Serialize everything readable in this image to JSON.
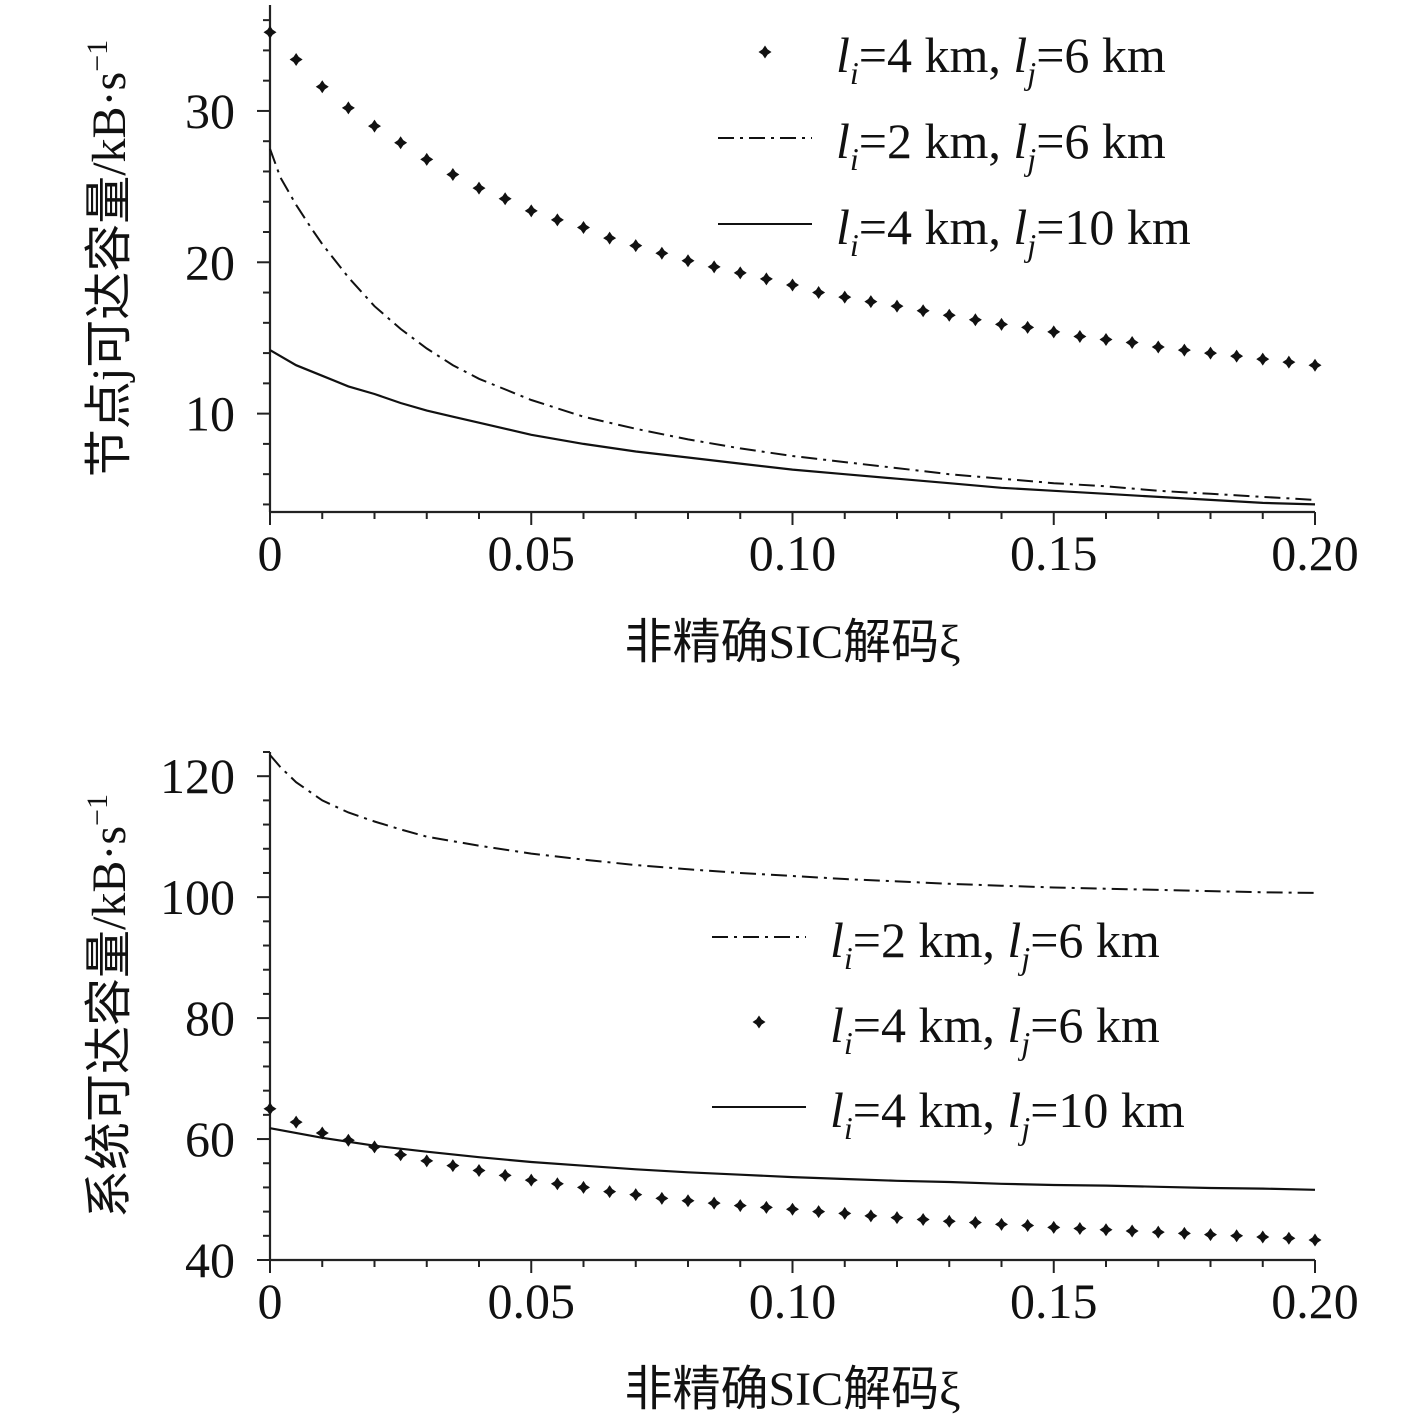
{
  "chart_data": [
    {
      "type": "line",
      "xlabel": "非精确SIC解码ξ",
      "ylabel": "节点j可达容量/kB·s",
      "ylabel_sup": "−1",
      "xlim": [
        0,
        0.2
      ],
      "ylim": [
        3.5,
        37
      ],
      "xticks": [
        0,
        0.05,
        0.1,
        0.15,
        0.2
      ],
      "xtick_labels": [
        "0",
        "0.05",
        "0.10",
        "0.15",
        "0.20"
      ],
      "yticks": [
        10,
        20,
        30
      ],
      "ytick_labels": [
        "10",
        "20",
        "30"
      ],
      "legend_position": "top-right",
      "series": [
        {
          "name": "li=4 km, lj=6 km",
          "label_parts": [
            "l",
            "i",
            "=4 km, ",
            "l",
            "j",
            "=6 km"
          ],
          "style": "markers",
          "x": [
            0,
            0.005,
            0.01,
            0.015,
            0.02,
            0.025,
            0.03,
            0.035,
            0.04,
            0.045,
            0.05,
            0.055,
            0.06,
            0.065,
            0.07,
            0.075,
            0.08,
            0.085,
            0.09,
            0.095,
            0.1,
            0.105,
            0.11,
            0.115,
            0.12,
            0.125,
            0.13,
            0.135,
            0.14,
            0.145,
            0.15,
            0.155,
            0.16,
            0.165,
            0.17,
            0.175,
            0.18,
            0.185,
            0.19,
            0.195,
            0.2
          ],
          "y": [
            35.2,
            33.4,
            31.6,
            30.2,
            29.0,
            27.9,
            26.8,
            25.8,
            24.9,
            24.2,
            23.4,
            22.8,
            22.3,
            21.6,
            21.1,
            20.6,
            20.1,
            19.7,
            19.3,
            18.9,
            18.5,
            18.0,
            17.7,
            17.4,
            17.1,
            16.8,
            16.5,
            16.2,
            15.9,
            15.7,
            15.4,
            15.1,
            14.9,
            14.7,
            14.4,
            14.2,
            14.0,
            13.8,
            13.6,
            13.4,
            13.2
          ]
        },
        {
          "name": "li=2 km, lj=6 km",
          "label_parts": [
            "l",
            "i",
            "=2 km, ",
            "l",
            "j",
            "=6 km"
          ],
          "style": "dashdot",
          "x": [
            0,
            0.002,
            0.005,
            0.008,
            0.01,
            0.015,
            0.02,
            0.025,
            0.03,
            0.035,
            0.04,
            0.05,
            0.06,
            0.07,
            0.08,
            0.09,
            0.1,
            0.11,
            0.12,
            0.13,
            0.14,
            0.15,
            0.16,
            0.17,
            0.18,
            0.19,
            0.2
          ],
          "y": [
            27.5,
            25.6,
            23.8,
            22.2,
            21.2,
            19.0,
            17.1,
            15.6,
            14.3,
            13.2,
            12.3,
            10.9,
            9.8,
            9.0,
            8.3,
            7.7,
            7.2,
            6.8,
            6.4,
            6.0,
            5.7,
            5.4,
            5.2,
            4.9,
            4.7,
            4.5,
            4.3
          ]
        },
        {
          "name": "li=4 km, lj=10 km",
          "label_parts": [
            "l",
            "i",
            "=4 km, ",
            "l",
            "j",
            "=10 km"
          ],
          "style": "solid",
          "x": [
            0,
            0.005,
            0.01,
            0.015,
            0.02,
            0.025,
            0.03,
            0.035,
            0.04,
            0.05,
            0.06,
            0.07,
            0.08,
            0.09,
            0.1,
            0.11,
            0.12,
            0.13,
            0.14,
            0.15,
            0.16,
            0.17,
            0.18,
            0.19,
            0.2
          ],
          "y": [
            14.2,
            13.2,
            12.5,
            11.8,
            11.3,
            10.7,
            10.2,
            9.8,
            9.4,
            8.6,
            8.0,
            7.5,
            7.1,
            6.7,
            6.3,
            6.0,
            5.7,
            5.4,
            5.1,
            4.9,
            4.7,
            4.5,
            4.3,
            4.1,
            4.0
          ]
        }
      ]
    },
    {
      "type": "line",
      "xlabel": "非精确SIC解码ξ",
      "ylabel": "系统可达容量/kB·s",
      "ylabel_sup": "−1",
      "xlim": [
        0,
        0.2
      ],
      "ylim": [
        40,
        124
      ],
      "xticks": [
        0,
        0.05,
        0.1,
        0.15,
        0.2
      ],
      "xtick_labels": [
        "0",
        "0.05",
        "0.10",
        "0.15",
        "0.20"
      ],
      "yticks": [
        40,
        60,
        80,
        100,
        120
      ],
      "ytick_labels": [
        "40",
        "60",
        "80",
        "100",
        "120"
      ],
      "legend_position": "middle-right",
      "series": [
        {
          "name": "li=2 km, lj=6 km",
          "label_parts": [
            "l",
            "i",
            "=2 km, ",
            "l",
            "j",
            "=6 km"
          ],
          "style": "dashdot",
          "x": [
            0,
            0.002,
            0.005,
            0.01,
            0.015,
            0.02,
            0.025,
            0.03,
            0.04,
            0.05,
            0.06,
            0.07,
            0.08,
            0.09,
            0.1,
            0.11,
            0.12,
            0.13,
            0.14,
            0.15,
            0.16,
            0.17,
            0.18,
            0.19,
            0.2
          ],
          "y": [
            123.5,
            121.5,
            119.0,
            116.0,
            114.0,
            112.5,
            111.2,
            110.0,
            108.5,
            107.2,
            106.2,
            105.3,
            104.6,
            104.0,
            103.5,
            103.0,
            102.6,
            102.2,
            101.9,
            101.6,
            101.4,
            101.2,
            101.0,
            100.8,
            100.7
          ]
        },
        {
          "name": "li=4 km, lj=6 km",
          "label_parts": [
            "l",
            "i",
            "=4 km, ",
            "l",
            "j",
            "=6 km"
          ],
          "style": "markers",
          "x": [
            0,
            0.005,
            0.01,
            0.015,
            0.02,
            0.025,
            0.03,
            0.035,
            0.04,
            0.045,
            0.05,
            0.055,
            0.06,
            0.065,
            0.07,
            0.075,
            0.08,
            0.085,
            0.09,
            0.095,
            0.1,
            0.105,
            0.11,
            0.115,
            0.12,
            0.125,
            0.13,
            0.135,
            0.14,
            0.145,
            0.15,
            0.155,
            0.16,
            0.165,
            0.17,
            0.175,
            0.18,
            0.185,
            0.19,
            0.195,
            0.2
          ],
          "y": [
            65.0,
            62.8,
            61.0,
            59.8,
            58.7,
            57.4,
            56.4,
            55.6,
            54.8,
            54.0,
            53.2,
            52.6,
            52.0,
            51.3,
            50.8,
            50.2,
            49.8,
            49.4,
            49.0,
            48.7,
            48.4,
            48.0,
            47.7,
            47.3,
            47.0,
            46.7,
            46.4,
            46.2,
            45.9,
            45.7,
            45.4,
            45.2,
            45.0,
            44.8,
            44.6,
            44.4,
            44.2,
            44.0,
            43.8,
            43.6,
            43.3
          ]
        },
        {
          "name": "li=4 km, lj=10 km",
          "label_parts": [
            "l",
            "i",
            "=4 km, ",
            "l",
            "j",
            "=10 km"
          ],
          "style": "solid",
          "x": [
            0,
            0.01,
            0.02,
            0.03,
            0.04,
            0.05,
            0.06,
            0.07,
            0.08,
            0.09,
            0.1,
            0.11,
            0.12,
            0.13,
            0.14,
            0.15,
            0.16,
            0.17,
            0.18,
            0.19,
            0.2
          ],
          "y": [
            61.8,
            60.2,
            58.9,
            57.9,
            57.0,
            56.2,
            55.6,
            55.0,
            54.5,
            54.1,
            53.7,
            53.4,
            53.1,
            52.9,
            52.6,
            52.4,
            52.3,
            52.1,
            51.9,
            51.8,
            51.6
          ]
        }
      ]
    }
  ]
}
